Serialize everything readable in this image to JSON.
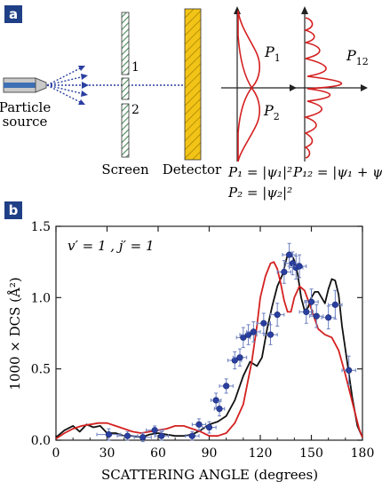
{
  "panel_a": {
    "tag": "a",
    "source_label_line1": "Particle",
    "source_label_line2": "source",
    "slit1": "1",
    "slit2": "2",
    "screen_label": "Screen",
    "detector_label": "Detector",
    "p1_label": "P",
    "p1_sub": "1",
    "p2_label": "P",
    "p2_sub": "2",
    "p12_label": "P",
    "p12_sub": "12",
    "eq_p1": "P₁ = |ψ₁|²",
    "eq_p2": "P₂ = |ψ₂|²",
    "eq_p12": "P₁₂ = |ψ₁ + ψ₂|²",
    "colors": {
      "slit_green": "#4f8a5b",
      "detector_yellow": "#f2c417",
      "curve_red": "#d42020",
      "tag_bg": "#1f3f86"
    }
  },
  "panel_b": {
    "tag": "b"
  },
  "chart_data": {
    "type": "scatter",
    "annotation": "v′ = 1 ,  j′ = 1",
    "xlabel": "SCATTERING ANGLE (degrees)",
    "ylabel": "1000 × DCS (Å²)",
    "xlim": [
      0,
      180
    ],
    "ylim": [
      0,
      1.5
    ],
    "xticks": [
      0,
      30,
      60,
      90,
      120,
      150,
      180
    ],
    "yticks": [
      0,
      0.5,
      1.0,
      1.5
    ],
    "ytick_labels": [
      "0.0",
      "0.5",
      "1.0",
      "1.5"
    ],
    "grid": false,
    "series": [
      {
        "kind": "points",
        "color": "#2a3fa0",
        "points": [
          {
            "x": 31,
            "y": 0.04,
            "xerr": 7,
            "yerr": 0.04
          },
          {
            "x": 42,
            "y": 0.03,
            "xerr": 6,
            "yerr": 0.03
          },
          {
            "x": 51,
            "y": 0.02,
            "xerr": 5,
            "yerr": 0.03
          },
          {
            "x": 58,
            "y": 0.07,
            "xerr": 5,
            "yerr": 0.03
          },
          {
            "x": 62,
            "y": 0.03,
            "xerr": 4,
            "yerr": 0.03
          },
          {
            "x": 80,
            "y": 0.03,
            "xerr": 4,
            "yerr": 0.03
          },
          {
            "x": 84,
            "y": 0.11,
            "xerr": 4,
            "yerr": 0.04
          },
          {
            "x": 90,
            "y": 0.09,
            "xerr": 4,
            "yerr": 0.04
          },
          {
            "x": 94,
            "y": 0.28,
            "xerr": 3,
            "yerr": 0.05
          },
          {
            "x": 96,
            "y": 0.22,
            "xerr": 3,
            "yerr": 0.05
          },
          {
            "x": 100,
            "y": 0.38,
            "xerr": 4,
            "yerr": 0.05
          },
          {
            "x": 105,
            "y": 0.56,
            "xerr": 4,
            "yerr": 0.06
          },
          {
            "x": 108,
            "y": 0.58,
            "xerr": 4,
            "yerr": 0.06
          },
          {
            "x": 110,
            "y": 0.72,
            "xerr": 4,
            "yerr": 0.07
          },
          {
            "x": 113,
            "y": 0.74,
            "xerr": 5,
            "yerr": 0.07
          },
          {
            "x": 116,
            "y": 0.76,
            "xerr": 4,
            "yerr": 0.07
          },
          {
            "x": 122,
            "y": 0.82,
            "xerr": 4,
            "yerr": 0.07
          },
          {
            "x": 126,
            "y": 0.74,
            "xerr": 4,
            "yerr": 0.07
          },
          {
            "x": 130,
            "y": 0.88,
            "xerr": 4,
            "yerr": 0.08
          },
          {
            "x": 134,
            "y": 1.18,
            "xerr": 4,
            "yerr": 0.08
          },
          {
            "x": 137,
            "y": 1.3,
            "xerr": 4,
            "yerr": 0.08
          },
          {
            "x": 139,
            "y": 1.24,
            "xerr": 4,
            "yerr": 0.08
          },
          {
            "x": 141,
            "y": 1.21,
            "xerr": 4,
            "yerr": 0.08
          },
          {
            "x": 143,
            "y": 1.22,
            "xerr": 4,
            "yerr": 0.08
          },
          {
            "x": 147,
            "y": 0.9,
            "xerr": 4,
            "yerr": 0.08
          },
          {
            "x": 150,
            "y": 0.97,
            "xerr": 4,
            "yerr": 0.09
          },
          {
            "x": 153,
            "y": 0.87,
            "xerr": 4,
            "yerr": 0.08
          },
          {
            "x": 160,
            "y": 0.86,
            "xerr": 4,
            "yerr": 0.08
          },
          {
            "x": 164,
            "y": 0.95,
            "xerr": 4,
            "yerr": 0.1
          },
          {
            "x": 172,
            "y": 0.49,
            "xerr": 4,
            "yerr": 0.1
          }
        ]
      },
      {
        "kind": "line",
        "color": "#111111",
        "x": [
          0,
          5,
          10,
          14,
          18,
          22,
          26,
          30,
          35,
          40,
          45,
          50,
          55,
          60,
          65,
          70,
          75,
          80,
          85,
          90,
          95,
          100,
          105,
          110,
          114,
          118,
          121,
          124,
          127,
          130,
          133,
          136,
          138,
          140,
          142,
          144,
          146,
          148,
          150,
          152,
          154,
          156,
          158,
          160,
          162,
          164,
          166,
          168,
          171,
          174,
          177,
          180
        ],
        "y": [
          0.02,
          0.07,
          0.1,
          0.06,
          0.11,
          0.09,
          0.1,
          0.05,
          0.05,
          0.03,
          0.03,
          0.02,
          0.04,
          0.05,
          0.04,
          0.03,
          0.03,
          0.04,
          0.07,
          0.11,
          0.13,
          0.17,
          0.28,
          0.45,
          0.55,
          0.52,
          0.58,
          0.78,
          0.94,
          1.08,
          1.16,
          1.3,
          1.31,
          1.26,
          1.16,
          1.0,
          0.91,
          0.93,
          1.0,
          1.04,
          1.04,
          1.0,
          0.96,
          1.06,
          1.13,
          1.12,
          1.02,
          0.8,
          0.55,
          0.3,
          0.1,
          0.02
        ]
      },
      {
        "kind": "line",
        "color": "#d42020",
        "x": [
          0,
          5,
          10,
          15,
          20,
          25,
          30,
          35,
          40,
          45,
          50,
          55,
          60,
          65,
          70,
          75,
          80,
          85,
          90,
          95,
          100,
          105,
          110,
          115,
          118,
          120,
          123,
          126,
          128,
          130,
          132,
          134,
          136,
          138,
          140,
          143,
          146,
          150,
          154,
          158,
          162,
          166,
          170,
          174,
          178,
          180
        ],
        "y": [
          0.01,
          0.05,
          0.08,
          0.1,
          0.11,
          0.12,
          0.12,
          0.1,
          0.08,
          0.06,
          0.05,
          0.06,
          0.07,
          0.08,
          0.1,
          0.1,
          0.08,
          0.06,
          0.03,
          0.03,
          0.05,
          0.12,
          0.25,
          0.55,
          0.8,
          1.0,
          1.15,
          1.24,
          1.25,
          1.2,
          1.1,
          0.98,
          0.9,
          0.9,
          1.0,
          1.08,
          1.05,
          0.92,
          0.78,
          0.74,
          0.72,
          0.63,
          0.46,
          0.27,
          0.08,
          0.02
        ]
      }
    ]
  }
}
